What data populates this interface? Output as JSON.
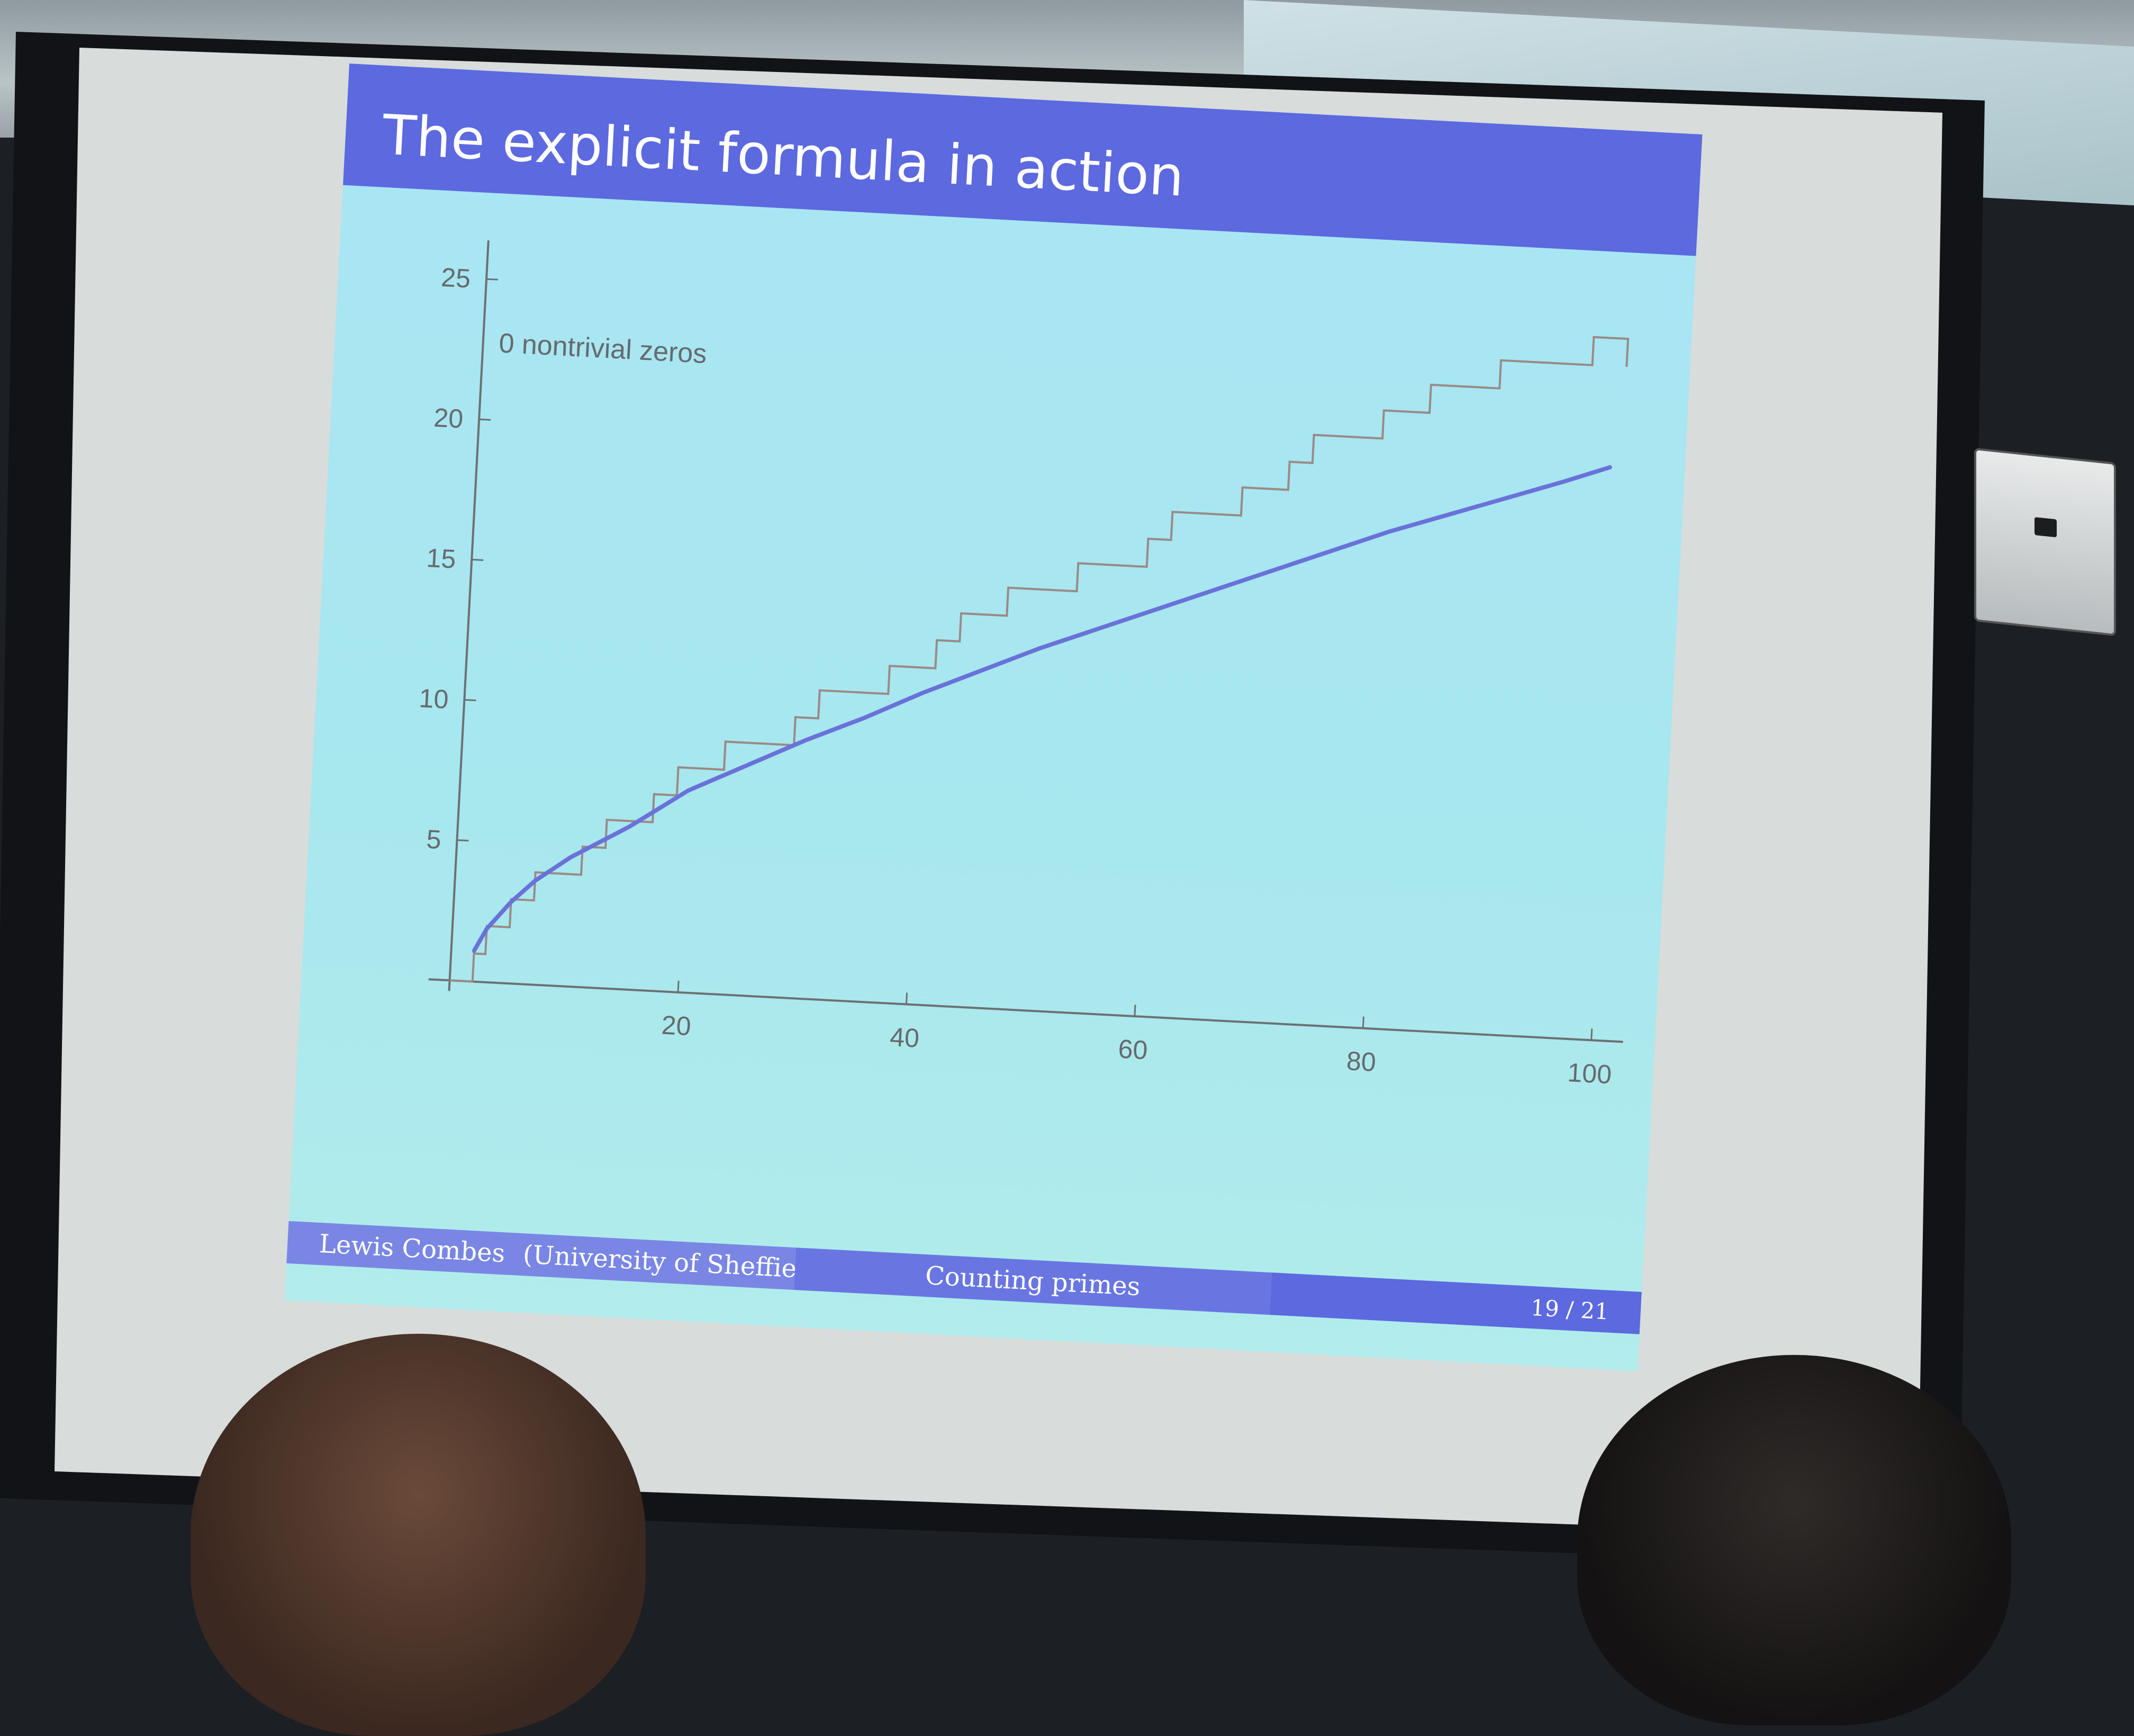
{
  "slide": {
    "title": "The explicit formula in action",
    "footer": {
      "author": "Lewis Combes",
      "affiliation": "(University of Sheffield)",
      "talk_title": "Counting primes",
      "page": "19 / 21"
    }
  },
  "chart_data": {
    "type": "line",
    "title": "",
    "annotation": "0 nontrivial zeros",
    "xlabel": "",
    "ylabel": "",
    "xlim": [
      0,
      100
    ],
    "ylim": [
      0,
      26
    ],
    "x_ticks": [
      "20",
      "40",
      "60",
      "80",
      "100"
    ],
    "y_ticks": [
      "5",
      "10",
      "15",
      "20",
      "25"
    ],
    "grid": false,
    "series": [
      {
        "style": "step",
        "color": "#9a8a86",
        "jump_points": [
          2,
          3,
          5,
          7,
          11,
          13,
          17,
          19,
          23,
          29,
          31,
          37,
          41,
          43,
          47,
          53,
          59,
          61,
          67,
          71,
          73,
          79,
          83,
          89,
          97
        ],
        "x_end": 100
      },
      {
        "style": "smooth",
        "color": "#6a72d8",
        "x": [
          2,
          3,
          5,
          7,
          10,
          15,
          20,
          25,
          30,
          35,
          40,
          45,
          50,
          55,
          60,
          65,
          70,
          75,
          80,
          85,
          90,
          95,
          99
        ],
        "y": [
          1.1,
          1.9,
          2.9,
          3.7,
          4.6,
          5.8,
          7.2,
          8.2,
          9.2,
          10.1,
          11.1,
          12.0,
          12.9,
          13.7,
          14.5,
          15.3,
          16.1,
          16.9,
          17.7,
          18.4,
          19.1,
          19.8,
          20.4
        ]
      }
    ]
  }
}
